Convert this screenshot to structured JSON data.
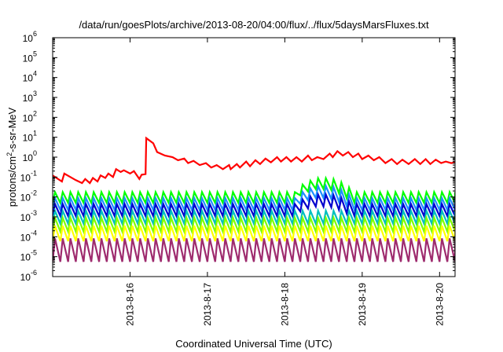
{
  "chart_data": {
    "type": "line",
    "title": "/data/run/goesPlots/archive/2013-08-20/04:00/flux/../flux/5daysMarsFluxes.txt",
    "xlabel": "Coordinated Universal Time (UTC)",
    "ylabel": {
      "prefix": "protons/cm",
      "sup": "2",
      "suffix": "-s-sr-MeV"
    },
    "yscale": "log",
    "ylim": [
      1e-06,
      1000000.0
    ],
    "xlim_days": [
      15.0,
      20.2
    ],
    "grid": false,
    "legend": "none",
    "ytick_labels": [
      {
        "exp": -6,
        "base": "10",
        "sup": "-6"
      },
      {
        "exp": -5,
        "base": "10",
        "sup": "-5"
      },
      {
        "exp": -4,
        "base": "10",
        "sup": "-4"
      },
      {
        "exp": -3,
        "base": "10",
        "sup": "-3"
      },
      {
        "exp": -2,
        "base": "10",
        "sup": "-2"
      },
      {
        "exp": -1,
        "base": "10",
        "sup": "-1"
      },
      {
        "exp": 0,
        "base": "10",
        "sup": "0"
      },
      {
        "exp": 1,
        "base": "10",
        "sup": "1"
      },
      {
        "exp": 2,
        "base": "10",
        "sup": "2"
      },
      {
        "exp": 3,
        "base": "10",
        "sup": "3"
      },
      {
        "exp": 4,
        "base": "10",
        "sup": "4"
      },
      {
        "exp": 5,
        "base": "10",
        "sup": "5"
      },
      {
        "exp": 6,
        "base": "10",
        "sup": "6"
      }
    ],
    "xtick_labels": [
      {
        "day": 16,
        "label": "2013-8-16"
      },
      {
        "day": 17,
        "label": "2013-8-17"
      },
      {
        "day": 18,
        "label": "2013-8-18"
      },
      {
        "day": 19,
        "label": "2013-8-19"
      },
      {
        "day": 20,
        "label": "2013-8-20"
      }
    ],
    "series": [
      {
        "color": "#ff0000",
        "points": [
          [
            15.0,
            0.12
          ],
          [
            15.12,
            0.06
          ],
          [
            15.15,
            0.15
          ],
          [
            15.3,
            0.07
          ],
          [
            15.38,
            0.05
          ],
          [
            15.42,
            0.08
          ],
          [
            15.48,
            0.05
          ],
          [
            15.52,
            0.09
          ],
          [
            15.58,
            0.06
          ],
          [
            15.62,
            0.12
          ],
          [
            15.68,
            0.09
          ],
          [
            15.72,
            0.15
          ],
          [
            15.78,
            0.1
          ],
          [
            15.82,
            0.25
          ],
          [
            15.88,
            0.18
          ],
          [
            15.92,
            0.22
          ],
          [
            16.0,
            0.15
          ],
          [
            16.05,
            0.2
          ],
          [
            16.12,
            0.08
          ],
          [
            16.15,
            0.13
          ],
          [
            16.2,
            0.14
          ],
          [
            16.21,
            9.0
          ],
          [
            16.3,
            5.0
          ],
          [
            16.35,
            1.8
          ],
          [
            16.45,
            1.2
          ],
          [
            16.55,
            1.0
          ],
          [
            16.62,
            0.7
          ],
          [
            16.7,
            0.85
          ],
          [
            16.75,
            0.5
          ],
          [
            16.82,
            0.65
          ],
          [
            16.9,
            0.4
          ],
          [
            16.98,
            0.5
          ],
          [
            17.05,
            0.3
          ],
          [
            17.12,
            0.4
          ],
          [
            17.2,
            0.25
          ],
          [
            17.28,
            0.4
          ],
          [
            17.3,
            0.25
          ],
          [
            17.38,
            0.45
          ],
          [
            17.42,
            0.3
          ],
          [
            17.5,
            0.6
          ],
          [
            17.55,
            0.35
          ],
          [
            17.62,
            0.7
          ],
          [
            17.68,
            0.45
          ],
          [
            17.75,
            0.85
          ],
          [
            17.82,
            0.55
          ],
          [
            17.9,
            1.0
          ],
          [
            17.95,
            0.6
          ],
          [
            18.02,
            1.0
          ],
          [
            18.08,
            0.6
          ],
          [
            18.15,
            1.0
          ],
          [
            18.22,
            0.6
          ],
          [
            18.3,
            1.2
          ],
          [
            18.35,
            0.7
          ],
          [
            18.42,
            1.0
          ],
          [
            18.5,
            0.8
          ],
          [
            18.58,
            1.5
          ],
          [
            18.62,
            1.0
          ],
          [
            18.68,
            2.0
          ],
          [
            18.75,
            1.2
          ],
          [
            18.82,
            1.8
          ],
          [
            18.88,
            1.0
          ],
          [
            18.95,
            1.5
          ],
          [
            19.0,
            0.8
          ],
          [
            19.08,
            1.2
          ],
          [
            19.15,
            0.7
          ],
          [
            19.22,
            1.0
          ],
          [
            19.3,
            0.5
          ],
          [
            19.38,
            0.8
          ],
          [
            19.45,
            0.45
          ],
          [
            19.52,
            0.75
          ],
          [
            19.6,
            0.45
          ],
          [
            19.68,
            0.8
          ],
          [
            19.75,
            0.45
          ],
          [
            19.82,
            0.8
          ],
          [
            19.88,
            0.45
          ],
          [
            19.95,
            0.75
          ],
          [
            20.02,
            0.5
          ],
          [
            20.08,
            0.6
          ],
          [
            20.15,
            0.5
          ],
          [
            20.2,
            0.55
          ]
        ]
      },
      {
        "color": "#00ff00",
        "base": 0.005,
        "amp": 3.5,
        "boost": [
          [
            18.1,
            18.85,
            5.0
          ]
        ]
      },
      {
        "color": "#1e90ff",
        "base": 0.0022,
        "amp": 4.0,
        "boost": [
          [
            18.1,
            18.85,
            4.0
          ]
        ]
      },
      {
        "color": "#0000cd",
        "base": 0.0011,
        "amp": 4.0,
        "boost": [
          [
            18.1,
            18.85,
            3.0
          ]
        ]
      },
      {
        "color": "#00bfbf",
        "base": 0.00045,
        "amp": 4.5
      },
      {
        "color": "#7fff00",
        "base": 0.00018,
        "amp": 5.0
      },
      {
        "color": "#ffff00",
        "base": 6e-05,
        "amp": 6.0
      },
      {
        "color": "#9e2b6e",
        "base": 5.5e-06,
        "amp": 15.0
      }
    ],
    "oscillation_period_days": 0.1
  }
}
